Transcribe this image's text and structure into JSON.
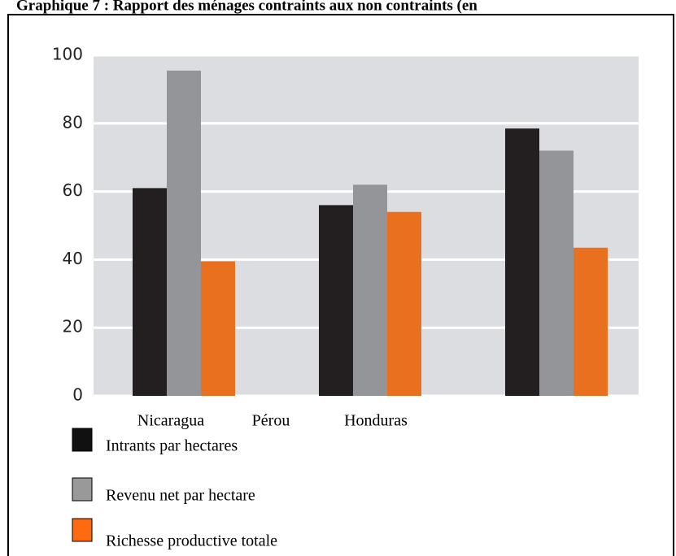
{
  "chart_data": {
    "type": "bar",
    "title": "Graphique 7 : Rapport des ménages contraints aux non contraints (en",
    "categories": [
      "Nicaragua",
      "Pérou",
      "Honduras"
    ],
    "series": [
      {
        "name": "Intrants par hectares",
        "color": "#231f20",
        "values": [
          61,
          56,
          78.5
        ]
      },
      {
        "name": "Revenu net par hectare",
        "color": "#939598",
        "values": [
          95.5,
          62,
          72
        ]
      },
      {
        "name": "Richesse productive totale",
        "color": "#e8701e",
        "values": [
          39.5,
          54,
          43.5
        ]
      }
    ],
    "ylim": [
      0,
      100
    ],
    "yticks": [
      0,
      20,
      40,
      60,
      80,
      100
    ],
    "grid": true
  }
}
